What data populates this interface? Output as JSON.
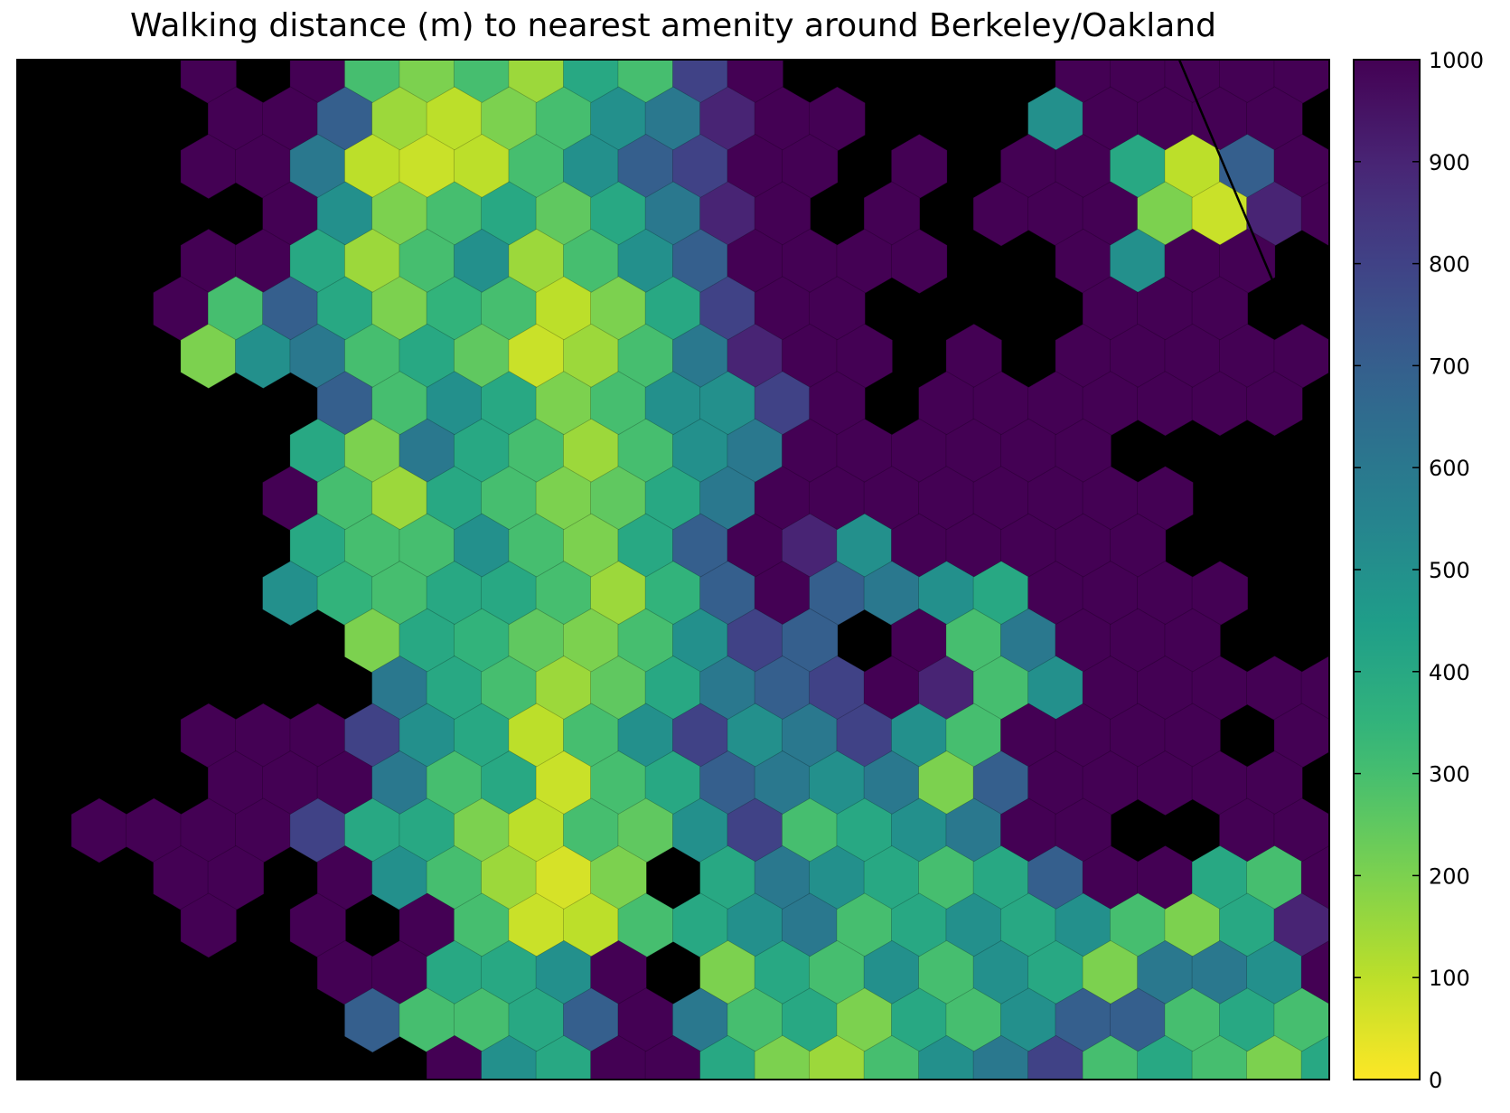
{
  "chart_data": {
    "type": "hexbin",
    "title": "Walking distance (m) to nearest amenity around Berkeley/Oakland",
    "colormap": "viridis_r",
    "background": "#000000",
    "clim": [
      0,
      1000
    ],
    "cticks": [
      0,
      100,
      200,
      300,
      400,
      500,
      600,
      700,
      800,
      900,
      1000
    ],
    "values": [
      [
        null,
        null,
        null,
        1000,
        null,
        1000,
        300,
        200,
        300,
        150,
        400,
        300,
        800,
        1000,
        null,
        null,
        null,
        null,
        null,
        1000,
        1000,
        1000,
        1000,
        1000
      ],
      [
        null,
        null,
        null,
        1000,
        1000,
        700,
        150,
        100,
        200,
        300,
        500,
        600,
        900,
        1000,
        1000,
        null,
        null,
        null,
        500,
        1000,
        1000,
        1000,
        1000,
        null
      ],
      [
        null,
        null,
        null,
        1000,
        1000,
        600,
        100,
        80,
        100,
        300,
        500,
        700,
        800,
        1000,
        1000,
        null,
        1000,
        null,
        1000,
        1000,
        400,
        100,
        700,
        1000
      ],
      [
        null,
        null,
        null,
        null,
        1000,
        500,
        200,
        300,
        400,
        250,
        400,
        600,
        900,
        1000,
        null,
        1000,
        null,
        1000,
        1000,
        1000,
        200,
        80,
        900,
        1000
      ],
      [
        null,
        null,
        null,
        1000,
        1000,
        400,
        150,
        300,
        500,
        150,
        300,
        500,
        700,
        1000,
        1000,
        1000,
        1000,
        null,
        null,
        1000,
        500,
        1000,
        1000,
        null
      ],
      [
        null,
        null,
        1000,
        300,
        700,
        400,
        200,
        350,
        300,
        100,
        200,
        400,
        800,
        1000,
        1000,
        null,
        null,
        null,
        null,
        1000,
        1000,
        1000,
        null,
        null
      ],
      [
        null,
        null,
        null,
        200,
        500,
        600,
        300,
        400,
        250,
        80,
        150,
        300,
        600,
        900,
        1000,
        1000,
        null,
        1000,
        null,
        1000,
        1000,
        1000,
        1000,
        1000
      ],
      [
        null,
        null,
        null,
        null,
        null,
        700,
        300,
        500,
        400,
        200,
        300,
        500,
        500,
        800,
        1000,
        null,
        1000,
        1000,
        1000,
        1000,
        1000,
        1000,
        1000,
        null
      ],
      [
        null,
        null,
        null,
        null,
        null,
        400,
        200,
        600,
        400,
        300,
        150,
        300,
        500,
        600,
        1000,
        1000,
        1000,
        1000,
        1000,
        1000,
        null,
        null,
        null,
        null
      ],
      [
        null,
        null,
        null,
        null,
        1000,
        300,
        150,
        400,
        300,
        200,
        250,
        400,
        600,
        1000,
        1000,
        1000,
        1000,
        1000,
        1000,
        1000,
        1000,
        null,
        null,
        null
      ],
      [
        null,
        null,
        null,
        null,
        null,
        400,
        300,
        300,
        500,
        300,
        200,
        400,
        700,
        1000,
        900,
        500,
        1000,
        1000,
        1000,
        1000,
        1000,
        null,
        null,
        null
      ],
      [
        null,
        null,
        null,
        null,
        500,
        350,
        300,
        400,
        400,
        300,
        150,
        350,
        700,
        1000,
        700,
        600,
        500,
        400,
        1000,
        1000,
        1000,
        1000,
        null,
        null
      ],
      [
        null,
        null,
        null,
        null,
        null,
        null,
        200,
        400,
        350,
        250,
        200,
        300,
        500,
        800,
        700,
        null,
        1000,
        300,
        600,
        1000,
        1000,
        1000,
        null,
        null
      ],
      [
        null,
        null,
        null,
        null,
        null,
        null,
        600,
        400,
        300,
        150,
        250,
        400,
        600,
        700,
        800,
        1000,
        900,
        300,
        500,
        1000,
        1000,
        1000,
        1000,
        1000
      ],
      [
        null,
        null,
        null,
        1000,
        1000,
        1000,
        800,
        500,
        400,
        100,
        300,
        500,
        800,
        500,
        600,
        800,
        500,
        300,
        1000,
        1000,
        1000,
        1000,
        null,
        1000
      ],
      [
        null,
        null,
        null,
        1000,
        1000,
        1000,
        600,
        300,
        400,
        80,
        300,
        400,
        700,
        600,
        500,
        600,
        200,
        700,
        1000,
        1000,
        1000,
        1000,
        1000,
        null
      ],
      [
        null,
        1000,
        1000,
        1000,
        1000,
        800,
        400,
        400,
        200,
        100,
        300,
        250,
        500,
        800,
        300,
        400,
        500,
        600,
        1000,
        1000,
        null,
        null,
        1000,
        1000
      ],
      [
        null,
        null,
        1000,
        1000,
        null,
        1000,
        500,
        300,
        150,
        60,
        200,
        null,
        400,
        600,
        500,
        400,
        300,
        400,
        700,
        1000,
        1000,
        400,
        300,
        1000
      ],
      [
        null,
        null,
        null,
        1000,
        null,
        1000,
        null,
        1000,
        300,
        80,
        100,
        300,
        400,
        500,
        600,
        300,
        400,
        500,
        400,
        500,
        300,
        200,
        400,
        900
      ],
      [
        null,
        null,
        null,
        null,
        null,
        1000,
        1000,
        400,
        400,
        500,
        1000,
        null,
        200,
        400,
        300,
        500,
        300,
        500,
        400,
        200,
        600,
        600,
        500,
        1000
      ],
      [
        null,
        null,
        null,
        null,
        null,
        null,
        700,
        300,
        300,
        400,
        700,
        1000,
        600,
        300,
        400,
        200,
        400,
        300,
        500,
        700,
        700,
        300,
        400,
        300
      ],
      [
        null,
        null,
        null,
        null,
        null,
        null,
        null,
        1000,
        500,
        400,
        1000,
        1000,
        400,
        200,
        150,
        300,
        500,
        600,
        800,
        300,
        400,
        300,
        200,
        400
      ]
    ]
  }
}
